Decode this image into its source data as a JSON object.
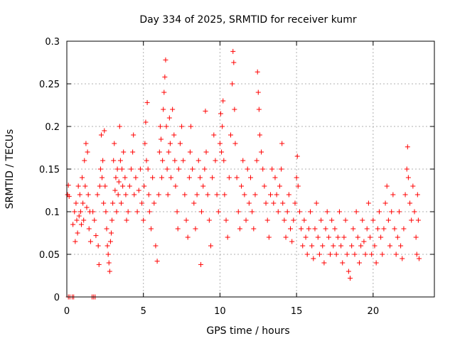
{
  "chart_data": {
    "type": "scatter",
    "title": "Day 334 of 2025, SRMTID for receiver kumr",
    "xlabel": "GPS time / hours",
    "ylabel": "SRMTID / TECUs",
    "xlim": [
      0,
      24
    ],
    "ylim": [
      0,
      0.3
    ],
    "xticks": [
      "0",
      "5",
      "10",
      "15",
      "20"
    ],
    "yticks": [
      "0",
      "0.05",
      "0.1",
      "0.15",
      "0.2",
      "0.25",
      "0.3"
    ],
    "grid": true,
    "marker": "plus",
    "color": "#ff0000",
    "series": [
      {
        "name": "SRMTID",
        "points": [
          [
            0.05,
            0.12
          ],
          [
            0.1,
            0.131
          ],
          [
            0.15,
            0.118
          ],
          [
            0.4,
            0.085
          ],
          [
            0.5,
            0.1
          ],
          [
            0.55,
            0.065
          ],
          [
            0.6,
            0.11
          ],
          [
            0.65,
            0.09
          ],
          [
            0.7,
            0.075
          ],
          [
            0.75,
            0.13
          ],
          [
            0.8,
            0.095
          ],
          [
            0.85,
            0.12
          ],
          [
            0.9,
            0.1
          ],
          [
            0.95,
            0.085
          ],
          [
            1.0,
            0.14
          ],
          [
            1.05,
            0.11
          ],
          [
            1.1,
            0.09
          ],
          [
            1.15,
            0.16
          ],
          [
            1.2,
            0.13
          ],
          [
            1.25,
            0.18
          ],
          [
            1.3,
            0.105
          ],
          [
            1.35,
            0.17
          ],
          [
            1.4,
            0.12
          ],
          [
            1.45,
            0.08
          ],
          [
            1.5,
            0.1
          ],
          [
            1.55,
            0.065
          ],
          [
            1.7,
            0.1
          ],
          [
            1.8,
            0.09
          ],
          [
            1.9,
            0.072
          ],
          [
            2.0,
            0.12
          ],
          [
            2.05,
            0.06
          ],
          [
            2.1,
            0.038
          ],
          [
            2.15,
            0.13
          ],
          [
            2.2,
            0.15
          ],
          [
            2.25,
            0.19
          ],
          [
            2.3,
            0.14
          ],
          [
            2.35,
            0.16
          ],
          [
            2.4,
            0.11
          ],
          [
            2.45,
            0.195
          ],
          [
            2.5,
            0.13
          ],
          [
            2.55,
            0.1
          ],
          [
            2.6,
            0.08
          ],
          [
            2.65,
            0.06
          ],
          [
            2.7,
            0.05
          ],
          [
            2.75,
            0.04
          ],
          [
            2.8,
            0.03
          ],
          [
            2.85,
            0.065
          ],
          [
            2.9,
            0.075
          ],
          [
            2.95,
            0.09
          ],
          [
            3.0,
            0.11
          ],
          [
            3.05,
            0.16
          ],
          [
            3.1,
            0.18
          ],
          [
            3.15,
            0.125
          ],
          [
            3.2,
            0.14
          ],
          [
            3.25,
            0.1
          ],
          [
            3.3,
            0.15
          ],
          [
            3.35,
            0.12
          ],
          [
            3.4,
            0.135
          ],
          [
            3.45,
            0.2
          ],
          [
            3.5,
            0.16
          ],
          [
            3.55,
            0.11
          ],
          [
            3.6,
            0.15
          ],
          [
            3.65,
            0.13
          ],
          [
            3.7,
            0.17
          ],
          [
            3.8,
            0.14
          ],
          [
            3.85,
            0.12
          ],
          [
            3.9,
            0.09
          ],
          [
            4.0,
            0.1
          ],
          [
            4.1,
            0.13
          ],
          [
            4.2,
            0.15
          ],
          [
            4.3,
            0.17
          ],
          [
            4.35,
            0.19
          ],
          [
            4.4,
            0.12
          ],
          [
            4.5,
            0.14
          ],
          [
            4.6,
            0.1
          ],
          [
            4.7,
            0.125
          ],
          [
            4.8,
            0.15
          ],
          [
            4.9,
            0.11
          ],
          [
            5.0,
            0.09
          ],
          [
            5.05,
            0.13
          ],
          [
            5.1,
            0.18
          ],
          [
            5.15,
            0.205
          ],
          [
            5.2,
            0.16
          ],
          [
            5.25,
            0.228
          ],
          [
            5.3,
            0.15
          ],
          [
            5.35,
            0.12
          ],
          [
            5.4,
            0.1
          ],
          [
            5.5,
            0.08
          ],
          [
            5.6,
            0.14
          ],
          [
            5.7,
            0.11
          ],
          [
            5.8,
            0.06
          ],
          [
            5.9,
            0.042
          ],
          [
            6.0,
            0.12
          ],
          [
            6.05,
            0.17
          ],
          [
            6.1,
            0.2
          ],
          [
            6.15,
            0.185
          ],
          [
            6.2,
            0.14
          ],
          [
            6.25,
            0.16
          ],
          [
            6.3,
            0.22
          ],
          [
            6.35,
            0.24
          ],
          [
            6.4,
            0.258
          ],
          [
            6.45,
            0.278
          ],
          [
            6.5,
            0.2
          ],
          [
            6.55,
            0.15
          ],
          [
            6.6,
            0.12
          ],
          [
            6.65,
            0.17
          ],
          [
            6.7,
            0.21
          ],
          [
            6.75,
            0.18
          ],
          [
            6.8,
            0.14
          ],
          [
            6.9,
            0.22
          ],
          [
            7.0,
            0.19
          ],
          [
            7.05,
            0.16
          ],
          [
            7.1,
            0.13
          ],
          [
            7.2,
            0.1
          ],
          [
            7.25,
            0.08
          ],
          [
            7.3,
            0.15
          ],
          [
            7.4,
            0.18
          ],
          [
            7.5,
            0.2
          ],
          [
            7.6,
            0.16
          ],
          [
            7.7,
            0.12
          ],
          [
            7.8,
            0.09
          ],
          [
            7.9,
            0.07
          ],
          [
            8.0,
            0.14
          ],
          [
            8.05,
            0.17
          ],
          [
            8.1,
            0.2
          ],
          [
            8.2,
            0.15
          ],
          [
            8.3,
            0.11
          ],
          [
            8.4,
            0.08
          ],
          [
            8.5,
            0.12
          ],
          [
            8.6,
            0.16
          ],
          [
            8.7,
            0.14
          ],
          [
            8.75,
            0.038
          ],
          [
            8.8,
            0.1
          ],
          [
            8.9,
            0.13
          ],
          [
            9.0,
            0.15
          ],
          [
            9.05,
            0.218
          ],
          [
            9.1,
            0.17
          ],
          [
            9.2,
            0.12
          ],
          [
            9.3,
            0.09
          ],
          [
            9.4,
            0.06
          ],
          [
            9.5,
            0.14
          ],
          [
            9.6,
            0.19
          ],
          [
            9.7,
            0.16
          ],
          [
            9.8,
            0.12
          ],
          [
            9.9,
            0.1
          ],
          [
            10.0,
            0.18
          ],
          [
            10.05,
            0.215
          ],
          [
            10.1,
            0.17
          ],
          [
            10.15,
            0.2
          ],
          [
            10.2,
            0.23
          ],
          [
            10.25,
            0.16
          ],
          [
            10.3,
            0.12
          ],
          [
            10.4,
            0.09
          ],
          [
            10.5,
            0.07
          ],
          [
            10.6,
            0.14
          ],
          [
            10.7,
            0.19
          ],
          [
            10.8,
            0.25
          ],
          [
            10.85,
            0.288
          ],
          [
            10.9,
            0.275
          ],
          [
            10.95,
            0.22
          ],
          [
            11.0,
            0.18
          ],
          [
            11.1,
            0.14
          ],
          [
            11.2,
            0.1
          ],
          [
            11.3,
            0.08
          ],
          [
            11.4,
            0.13
          ],
          [
            11.5,
            0.16
          ],
          [
            11.6,
            0.12
          ],
          [
            11.7,
            0.09
          ],
          [
            11.8,
            0.15
          ],
          [
            11.9,
            0.11
          ],
          [
            12.0,
            0.14
          ],
          [
            12.1,
            0.1
          ],
          [
            12.2,
            0.08
          ],
          [
            12.3,
            0.12
          ],
          [
            12.4,
            0.16
          ],
          [
            12.45,
            0.264
          ],
          [
            12.5,
            0.24
          ],
          [
            12.55,
            0.22
          ],
          [
            12.6,
            0.19
          ],
          [
            12.7,
            0.17
          ],
          [
            12.8,
            0.15
          ],
          [
            12.9,
            0.13
          ],
          [
            13.0,
            0.11
          ],
          [
            13.1,
            0.09
          ],
          [
            13.2,
            0.07
          ],
          [
            13.3,
            0.12
          ],
          [
            13.4,
            0.15
          ],
          [
            13.5,
            0.11
          ],
          [
            13.6,
            0.14
          ],
          [
            13.7,
            0.12
          ],
          [
            13.8,
            0.1
          ],
          [
            13.9,
            0.13
          ],
          [
            14.0,
            0.15
          ],
          [
            14.05,
            0.18
          ],
          [
            14.1,
            0.11
          ],
          [
            14.2,
            0.09
          ],
          [
            14.3,
            0.07
          ],
          [
            14.4,
            0.1
          ],
          [
            14.5,
            0.12
          ],
          [
            14.6,
            0.08
          ],
          [
            14.7,
            0.065
          ],
          [
            14.8,
            0.09
          ],
          [
            14.9,
            0.11
          ],
          [
            15.0,
            0.14
          ],
          [
            15.05,
            0.165
          ],
          [
            15.1,
            0.13
          ],
          [
            15.2,
            0.1
          ],
          [
            15.3,
            0.08
          ],
          [
            15.4,
            0.06
          ],
          [
            15.5,
            0.09
          ],
          [
            15.6,
            0.07
          ],
          [
            15.7,
            0.05
          ],
          [
            15.8,
            0.08
          ],
          [
            15.9,
            0.1
          ],
          [
            16.0,
            0.06
          ],
          [
            16.1,
            0.045
          ],
          [
            16.2,
            0.08
          ],
          [
            16.3,
            0.11
          ],
          [
            16.4,
            0.07
          ],
          [
            16.5,
            0.05
          ],
          [
            16.6,
            0.09
          ],
          [
            16.7,
            0.06
          ],
          [
            16.8,
            0.04
          ],
          [
            16.9,
            0.08
          ],
          [
            17.0,
            0.1
          ],
          [
            17.1,
            0.07
          ],
          [
            17.2,
            0.05
          ],
          [
            17.3,
            0.09
          ],
          [
            17.4,
            0.06
          ],
          [
            17.5,
            0.08
          ],
          [
            17.6,
            0.05
          ],
          [
            17.7,
            0.07
          ],
          [
            17.8,
            0.1
          ],
          [
            17.9,
            0.06
          ],
          [
            18.0,
            0.04
          ],
          [
            18.1,
            0.07
          ],
          [
            18.2,
            0.09
          ],
          [
            18.3,
            0.05
          ],
          [
            18.4,
            0.03
          ],
          [
            18.5,
            0.022
          ],
          [
            18.6,
            0.06
          ],
          [
            18.7,
            0.08
          ],
          [
            18.8,
            0.05
          ],
          [
            18.9,
            0.1
          ],
          [
            19.0,
            0.07
          ],
          [
            19.1,
            0.04
          ],
          [
            19.2,
            0.06
          ],
          [
            19.3,
            0.09
          ],
          [
            19.4,
            0.065
          ],
          [
            19.5,
            0.05
          ],
          [
            19.6,
            0.08
          ],
          [
            19.7,
            0.11
          ],
          [
            19.8,
            0.07
          ],
          [
            19.9,
            0.05
          ],
          [
            20.0,
            0.09
          ],
          [
            20.1,
            0.06
          ],
          [
            20.2,
            0.04
          ],
          [
            20.3,
            0.08
          ],
          [
            20.4,
            0.1
          ],
          [
            20.5,
            0.07
          ],
          [
            20.6,
            0.05
          ],
          [
            20.7,
            0.08
          ],
          [
            20.8,
            0.11
          ],
          [
            20.9,
            0.13
          ],
          [
            21.0,
            0.09
          ],
          [
            21.1,
            0.06
          ],
          [
            21.2,
            0.1
          ],
          [
            21.3,
            0.12
          ],
          [
            21.4,
            0.08
          ],
          [
            21.5,
            0.05
          ],
          [
            21.6,
            0.07
          ],
          [
            21.7,
            0.1
          ],
          [
            21.8,
            0.06
          ],
          [
            21.9,
            0.045
          ],
          [
            22.0,
            0.08
          ],
          [
            22.1,
            0.12
          ],
          [
            22.2,
            0.15
          ],
          [
            22.25,
            0.176
          ],
          [
            22.3,
            0.14
          ],
          [
            22.4,
            0.11
          ],
          [
            22.5,
            0.09
          ],
          [
            22.6,
            0.13
          ],
          [
            22.7,
            0.1
          ],
          [
            22.8,
            0.07
          ],
          [
            22.85,
            0.05
          ],
          [
            22.9,
            0.12
          ],
          [
            22.95,
            0.09
          ],
          [
            23.0,
            0.045
          ],
          [
            0.1,
            0.0
          ],
          [
            0.2,
            0.0
          ],
          [
            0.35,
            0.0
          ],
          [
            0.45,
            0.0
          ],
          [
            1.65,
            0.0
          ],
          [
            1.75,
            0.0
          ],
          [
            1.85,
            0.0
          ]
        ]
      }
    ]
  }
}
